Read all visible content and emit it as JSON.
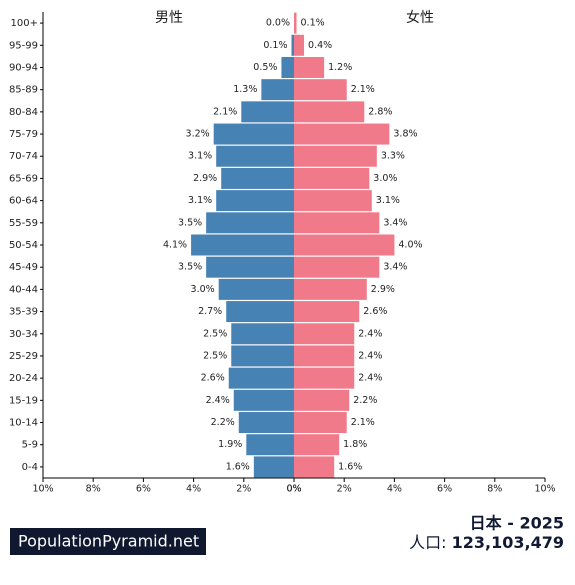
{
  "chart_data": {
    "type": "pyramid",
    "categories": [
      "100+",
      "95-99",
      "90-94",
      "85-89",
      "80-84",
      "75-79",
      "70-74",
      "65-69",
      "60-64",
      "55-59",
      "50-54",
      "45-49",
      "40-44",
      "35-39",
      "30-34",
      "25-29",
      "20-24",
      "15-19",
      "10-14",
      "5-9",
      "0-4"
    ],
    "series": [
      {
        "name": "男性",
        "color": "#4682b4",
        "values": [
          0.0,
          0.1,
          0.5,
          1.3,
          2.1,
          3.2,
          3.1,
          2.9,
          3.1,
          3.5,
          4.1,
          3.5,
          3.0,
          2.7,
          2.5,
          2.5,
          2.6,
          2.4,
          2.2,
          1.9,
          1.6
        ],
        "value_labels": [
          "0.0%",
          "0.1%",
          "0.5%",
          "1.3%",
          "2.1%",
          "3.2%",
          "3.1%",
          "2.9%",
          "3.1%",
          "3.5%",
          "4.1%",
          "3.5%",
          "3.0%",
          "2.7%",
          "2.5%",
          "2.5%",
          "2.6%",
          "2.4%",
          "2.2%",
          "1.9%",
          "1.6%"
        ]
      },
      {
        "name": "女性",
        "color": "#f07a89",
        "values": [
          0.1,
          0.4,
          1.2,
          2.1,
          2.8,
          3.8,
          3.3,
          3.0,
          3.1,
          3.4,
          4.0,
          3.4,
          2.9,
          2.6,
          2.4,
          2.4,
          2.4,
          2.2,
          2.1,
          1.8,
          1.6
        ],
        "value_labels": [
          "0.1%",
          "0.4%",
          "1.2%",
          "2.1%",
          "2.8%",
          "3.8%",
          "3.3%",
          "3.0%",
          "3.1%",
          "3.4%",
          "4.0%",
          "3.4%",
          "2.9%",
          "2.6%",
          "2.4%",
          "2.4%",
          "2.4%",
          "2.2%",
          "2.1%",
          "1.8%",
          "1.6%"
        ]
      }
    ],
    "xlim": [
      0,
      10
    ],
    "xticks": [
      {
        "value": 0,
        "label": "0%"
      },
      {
        "value": 2,
        "label": "2%"
      },
      {
        "value": 4,
        "label": "4%"
      },
      {
        "value": 6,
        "label": "6%"
      },
      {
        "value": 8,
        "label": "8%"
      },
      {
        "value": 10,
        "label": "10%"
      }
    ],
    "title": "日本 - 2025",
    "population_label": "人口:",
    "population": "123,103,479",
    "source": "PopulationPyramid.net"
  }
}
